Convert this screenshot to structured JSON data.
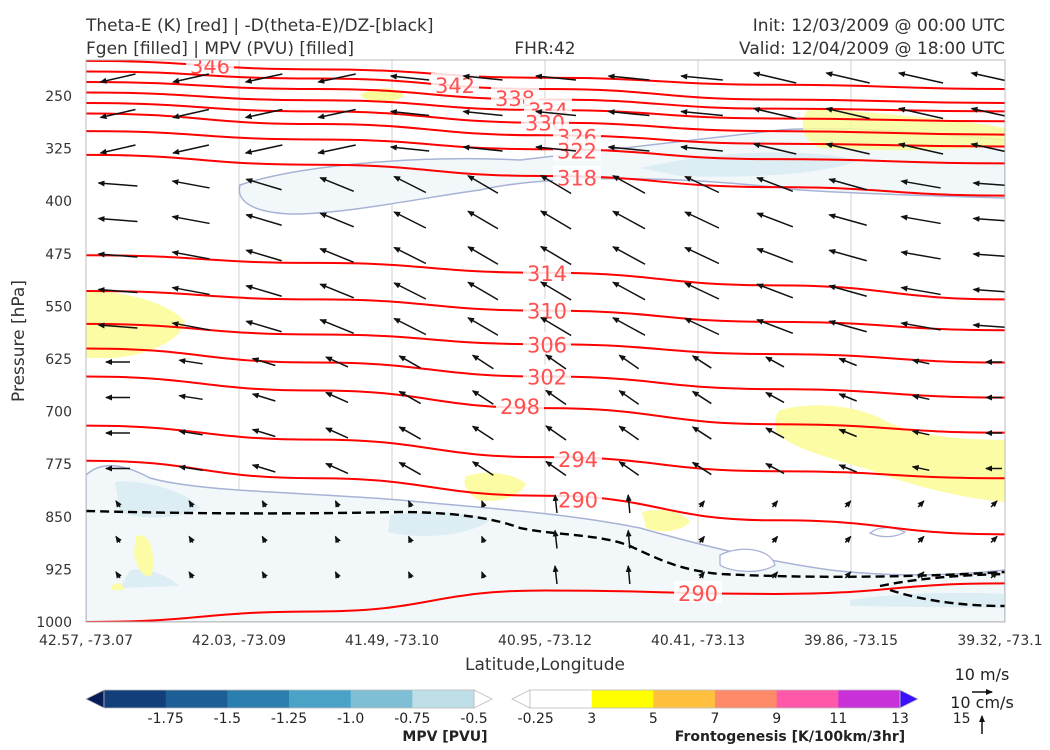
{
  "header": {
    "title_line1": "Theta-E (K) [red] | -D(theta-E)/DZ-[black]",
    "title_line2": "Fgen [filled] | MPV (PVU) [filled]",
    "fhr": "FHR:42",
    "init": "Init: 12/03/2009 @ 00:00 UTC",
    "valid": "Valid: 12/04/2009 @ 18:00 UTC"
  },
  "chart_data": {
    "type": "cross-section",
    "xlabel": "Latitude,Longitude",
    "ylabel": "Pressure [hPa]",
    "x_ticks": [
      "42.57, -73.07",
      "42.03, -73.09",
      "41.49, -73.10",
      "40.95, -73.12",
      "40.41, -73.13",
      "39.86, -73.15",
      "39.32, -73.1"
    ],
    "y_ticks": [
      250,
      325,
      400,
      475,
      550,
      625,
      700,
      775,
      850,
      925,
      1000
    ],
    "ylim": [
      1000,
      190
    ],
    "theta_e_contours": [
      {
        "value": "346",
        "levels": [
          200,
          212,
          224,
          234,
          240
        ]
      },
      {
        "value": "342",
        "levels": [
          215,
          225,
          240,
          255,
          260
        ]
      },
      {
        "value": "338",
        "levels": [
          230,
          240,
          255,
          268,
          272
        ]
      },
      {
        "value": "334",
        "levels": [
          245,
          256,
          270,
          282,
          286
        ]
      },
      {
        "value": "330",
        "levels": [
          260,
          272,
          288,
          300,
          305
        ]
      },
      {
        "value": "326",
        "levels": [
          275,
          290,
          306,
          318,
          322
        ]
      },
      {
        "value": "322",
        "levels": [
          300,
          312,
          326,
          340,
          346
        ]
      },
      {
        "value": "318",
        "levels": [
          334,
          348,
          364,
          380,
          392
        ]
      },
      {
        "value": "314",
        "levels": [
          477,
          488,
          502,
          520,
          540
        ]
      },
      {
        "value": "310",
        "levels": [
          528,
          540,
          556,
          572,
          584
        ]
      },
      {
        "value": "306",
        "levels": [
          575,
          590,
          604,
          618,
          630
        ]
      },
      {
        "value": "302",
        "levels": [
          610,
          630,
          650,
          668,
          680
        ]
      },
      {
        "value": "298",
        "levels": [
          650,
          670,
          695,
          718,
          730
        ]
      },
      {
        "value": "294",
        "levels": [
          720,
          740,
          765,
          785,
          795
        ]
      },
      {
        "value": "290",
        "levels": [
          770,
          795,
          820,
          855,
          875
        ]
      },
      {
        "value": "290",
        "levels": [
          1000,
          985,
          955,
          960,
          945
        ]
      }
    ],
    "colorbar_mpv": {
      "title": "MPV [PVU]",
      "ticks": [
        "-1.75",
        "-1.5",
        "-1.25",
        "-1.0",
        "-0.75",
        "-0.5",
        "-0.25"
      ],
      "colors": [
        "#081d58",
        "#123e7a",
        "#1d5e96",
        "#2b7fae",
        "#4aa3c6",
        "#7ebfd6",
        "#bedfe8",
        "#ffffff"
      ]
    },
    "colorbar_fgen": {
      "title": "Frontogenesis [K/100km/3hr]",
      "ticks": [
        "3",
        "5",
        "7",
        "9",
        "11",
        "13",
        "15"
      ],
      "colors": [
        "#ffffff",
        "#ffff00",
        "#ffc040",
        "#ff8a6a",
        "#ff58a8",
        "#c830d8",
        "#7c10f0",
        "#3a10ff"
      ]
    },
    "vector_key": {
      "horizontal": "10 m/s",
      "vertical": "10 cm/s"
    }
  }
}
